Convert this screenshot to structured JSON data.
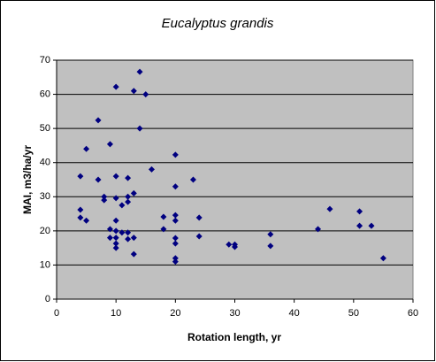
{
  "chart_data": {
    "type": "scatter",
    "title": "Eucalyptus grandis",
    "x_label": "Rotation length, yr",
    "y_label": "MAI, m3/ha/yr",
    "color": "#000080",
    "plot_background": "#c0c0c0",
    "grid": true,
    "xlim": [
      0,
      60
    ],
    "xticks": [
      0,
      10,
      20,
      30,
      40,
      50,
      60
    ],
    "ylim": [
      0,
      70
    ],
    "yticks": [
      0,
      10,
      20,
      30,
      40,
      50,
      60,
      70
    ],
    "x": [
      4,
      4,
      4,
      5,
      5,
      7,
      7,
      8,
      8,
      9,
      9,
      9,
      10,
      10,
      10,
      10,
      10,
      10,
      10,
      10,
      11,
      11,
      12,
      12,
      12,
      12,
      12,
      13,
      13,
      13,
      13,
      14,
      14,
      15,
      16,
      18,
      18,
      20,
      20,
      20,
      20,
      20,
      20,
      20,
      20,
      23,
      24,
      24,
      29,
      30,
      30,
      36,
      36,
      44,
      46,
      51,
      51,
      53,
      55
    ],
    "y": [
      36,
      26.2,
      23.9,
      44,
      23,
      52.4,
      35,
      30,
      29,
      45.4,
      20.5,
      18,
      62.2,
      36,
      29.6,
      23,
      20,
      18,
      16.3,
      15,
      27.5,
      19.5,
      35.5,
      30,
      28.5,
      19.5,
      17.6,
      61,
      31,
      18,
      13.2,
      66.6,
      50,
      60,
      38,
      24.1,
      20.5,
      42.3,
      33,
      24.6,
      23,
      17.9,
      16.3,
      12,
      11,
      35,
      23.9,
      18.4,
      16,
      16,
      15.3,
      19,
      15.6,
      20.5,
      26.4,
      25.7,
      21.5,
      21.5,
      12
    ]
  }
}
